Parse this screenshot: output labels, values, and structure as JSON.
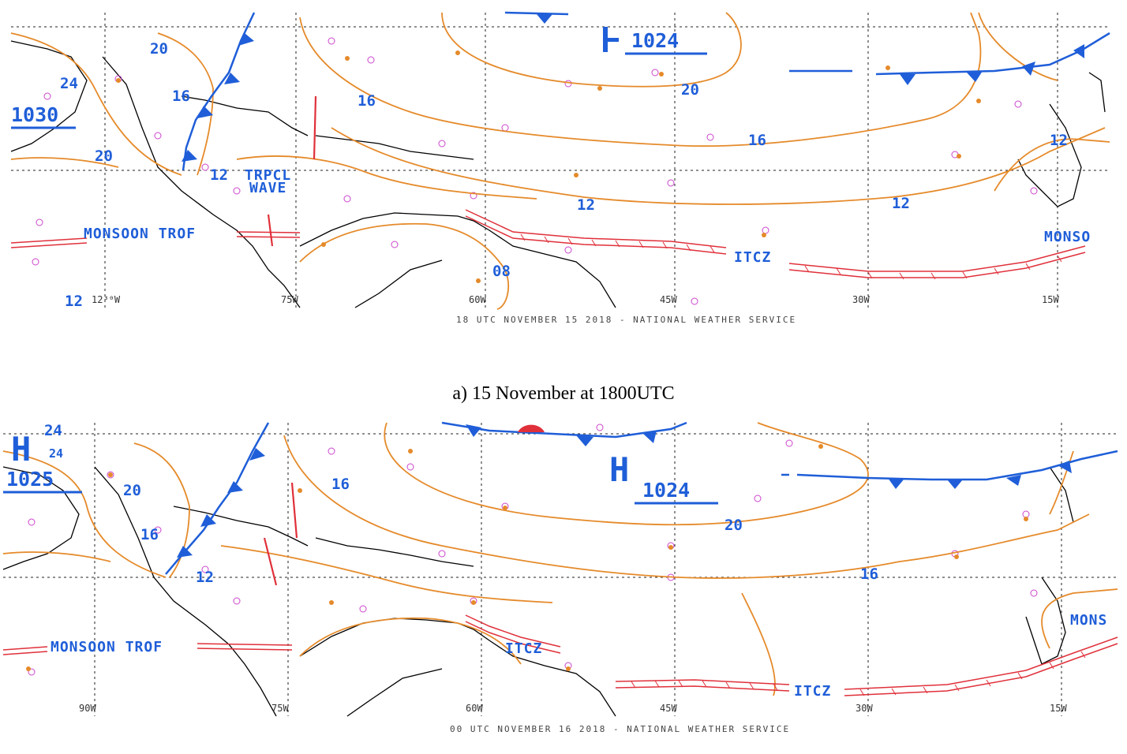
{
  "caption_a": "a) 15 November at 1800UTC",
  "map_a": {
    "footer": "18 UTC NOVEMBER 15 2018 - NATIONAL WEATHER SERVICE",
    "highs": [
      {
        "letter": "",
        "pressure": "1024"
      }
    ],
    "pressure_box": "1030",
    "isobar_labels": [
      "20",
      "24",
      "16",
      "20",
      "12",
      "16",
      "20",
      "16",
      "12",
      "12",
      "12",
      "12",
      "08"
    ],
    "features": {
      "wave_line1": "TRPCL",
      "wave_line2": "WAVE",
      "monsoon": "MONSOON TROF",
      "monsoon_right": "MONSO",
      "itcz": "ITCZ"
    },
    "longitudes": [
      "75W",
      "60W",
      "45W",
      "30W",
      "15W"
    ],
    "partial_lon": "12³⁰W"
  },
  "map_b": {
    "footer": "00 UTC NOVEMBER 16 2018 - NATIONAL WEATHER SERVICE",
    "highs": [
      {
        "letter": "H",
        "pressure": "1025"
      },
      {
        "letter": "H",
        "pressure": "1024"
      }
    ],
    "isobar_labels": [
      "24",
      "24",
      "20",
      "16",
      "16",
      "12",
      "20",
      "16"
    ],
    "features": {
      "monsoon": "MONSOON TROF",
      "monsoon_right": "MONS",
      "itcz_left": "ITCZ",
      "itcz_right": "ITCZ"
    },
    "longitudes": [
      "90W",
      "75W",
      "60W",
      "45W",
      "30W",
      "15W"
    ]
  },
  "colors": {
    "isobar": "#e58a2a",
    "front": "#1f5ed8",
    "itcz": "#e0303a",
    "land": "#000000",
    "stations": "#cc44cc"
  }
}
